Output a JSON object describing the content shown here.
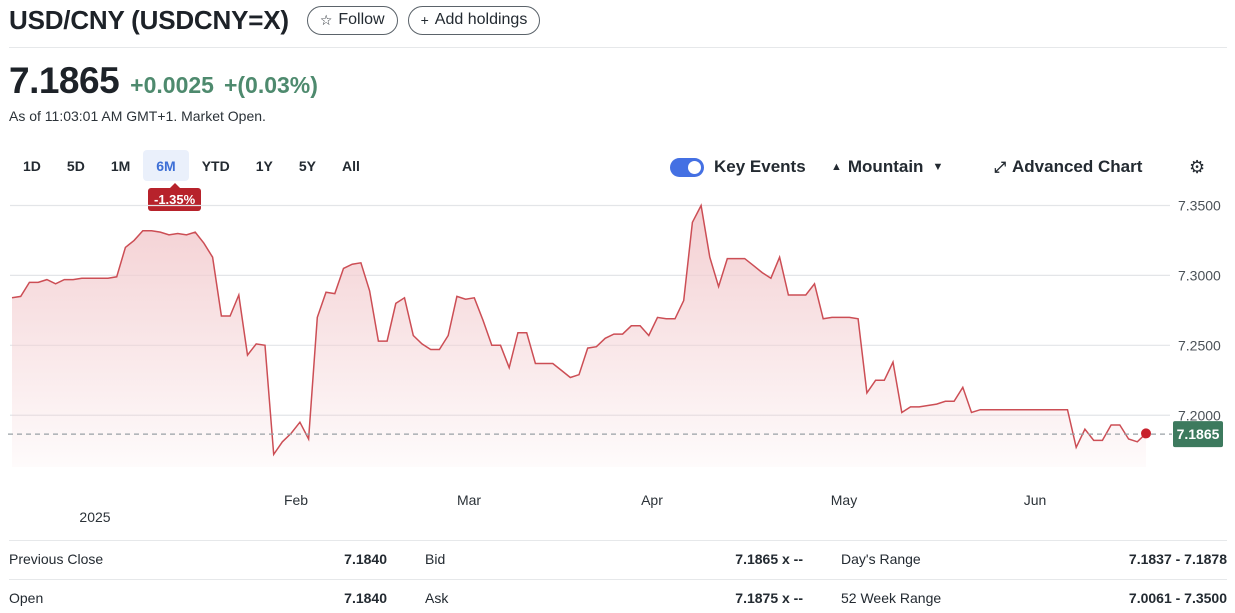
{
  "header": {
    "title": "USD/CNY (USDCNY=X)",
    "follow_label": "Follow",
    "follow_icon": "star-outline-icon",
    "add_holdings_label": "Add holdings",
    "add_icon": "plus-icon"
  },
  "quote": {
    "price": "7.1865",
    "change": "+0.0025",
    "change_pct": "+(0.03%)",
    "as_of": "As of 11:03:01 AM GMT+1. Market Open."
  },
  "ranges": [
    "1D",
    "5D",
    "1M",
    "6M",
    "YTD",
    "1Y",
    "5Y",
    "All"
  ],
  "active_range": "6M",
  "range_change": "-1.35%",
  "toolbar": {
    "key_events_label": "Key Events",
    "key_events_on": true,
    "chart_type_label": "Mountain",
    "advanced_chart_label": "Advanced Chart"
  },
  "chart_data": {
    "type": "area",
    "x_ticks": [
      "Feb",
      "Mar",
      "Apr",
      "May",
      "Jun"
    ],
    "year_label": "2025",
    "y_ticks": [
      "7.3500",
      "7.3000",
      "7.2500",
      "7.2000"
    ],
    "ylim": [
      7.163,
      7.3575
    ],
    "reference_line": 7.1865,
    "current_label": "7.1865",
    "colors": {
      "line": "#cc4e55",
      "fill": "#f3cdd0",
      "current_bg": "#3d7a5e",
      "reference": "#9aa0a6"
    },
    "series": [
      {
        "values": [
          7.284,
          7.285,
          7.295,
          7.295,
          7.297,
          7.294,
          7.297,
          7.297,
          7.298,
          7.298,
          7.298,
          7.298,
          7.299,
          7.32,
          7.325,
          7.332,
          7.332,
          7.331,
          7.329,
          7.33,
          7.329,
          7.331,
          7.323,
          7.313,
          7.271,
          7.271,
          7.286,
          7.243,
          7.251,
          7.25,
          7.172,
          7.181,
          7.187,
          7.195,
          7.183,
          7.27,
          7.288,
          7.287,
          7.305,
          7.308,
          7.309,
          7.289,
          7.253,
          7.253,
          7.28,
          7.284,
          7.257,
          7.251,
          7.247,
          7.247,
          7.257,
          7.285,
          7.283,
          7.284,
          7.268,
          7.25,
          7.25,
          7.234,
          7.259,
          7.259,
          7.237,
          7.237,
          7.237,
          7.232,
          7.227,
          7.229,
          7.248,
          7.249,
          7.255,
          7.258,
          7.258,
          7.264,
          7.264,
          7.257,
          7.27,
          7.269,
          7.269,
          7.282,
          7.338,
          7.35,
          7.313,
          7.292,
          7.312,
          7.312,
          7.312,
          7.307,
          7.302,
          7.298,
          7.313,
          7.286,
          7.286,
          7.286,
          7.294,
          7.269,
          7.27,
          7.27,
          7.27,
          7.269,
          7.216,
          7.225,
          7.225,
          7.238,
          7.202,
          7.206,
          7.206,
          7.207,
          7.208,
          7.21,
          7.21,
          7.22,
          7.202,
          7.204,
          7.204,
          7.204,
          7.204,
          7.204,
          7.204,
          7.204,
          7.204,
          7.204,
          7.204,
          7.204,
          7.177,
          7.19,
          7.182,
          7.182,
          7.193,
          7.193,
          7.183,
          7.181,
          7.187
        ]
      }
    ]
  },
  "stats": [
    [
      {
        "label": "Previous Close",
        "value": "7.1840"
      },
      {
        "label": "Bid",
        "value": "7.1865 x --"
      },
      {
        "label": "Day's Range",
        "value": "7.1837 - 7.1878"
      }
    ],
    [
      {
        "label": "Open",
        "value": "7.1840"
      },
      {
        "label": "Ask",
        "value": "7.1875 x --"
      },
      {
        "label": "52 Week Range",
        "value": "7.0061 - 7.3500"
      }
    ]
  ]
}
